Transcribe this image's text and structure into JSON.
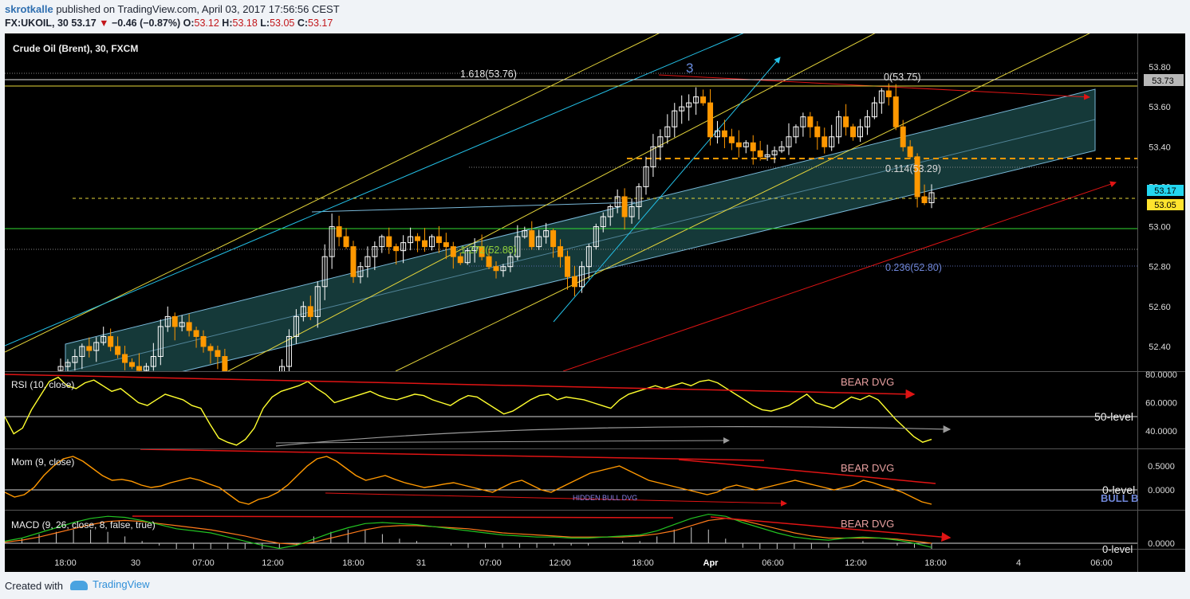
{
  "header": {
    "author": "skrotkalle",
    "published_text": "published on TradingView.com, April 03, 2017 17:56:56 CEST",
    "symbol": "FX:UKOIL, 30",
    "last": "53.17",
    "change": "−0.46 (−0.87%)",
    "open_label": "O:",
    "open": "53.12",
    "high_label": "H:",
    "high": "53.18",
    "low_label": "L:",
    "low": "53.05",
    "close_label": "C:",
    "close": "53.17"
  },
  "footer": {
    "created_with": "Created with",
    "brand": "TradingView"
  },
  "colors": {
    "background": "#000000",
    "up": "#ffffff",
    "down": "#ff9800",
    "channel_fill": "#2f7f7f",
    "fib_yellow": "#e6d63a",
    "cyan": "#23c1e8",
    "red": "#e01414",
    "rsi": "#ffff2e",
    "mom": "#ff9800",
    "macd": "#22c322",
    "signal": "#ff7a1a"
  },
  "chart_data": [
    {
      "type": "candlestick",
      "title": "Crude Oil (Brent), 30, FXCM",
      "ylim": [
        52.25,
        53.92
      ],
      "y_ticks": [
        "53.80",
        "53.60",
        "53.40",
        "53.20",
        "53.00",
        "52.80",
        "52.60",
        "52.40"
      ],
      "x_ticks": [
        "18:00",
        "30",
        "07:00",
        "12:00",
        "18:00",
        "31",
        "07:00",
        "12:00",
        "18:00",
        "Apr",
        "06:00",
        "12:00",
        "18:00",
        "4",
        "06:00"
      ],
      "price_tags": [
        "53.73",
        "53.17",
        "53.05"
      ],
      "wave_label": "3",
      "fib_levels": [
        {
          "label": "1.618(53.76)",
          "value": 53.76
        },
        {
          "label": "0(53.75)",
          "value": 53.75
        },
        {
          "label": "0.114(53.29)",
          "value": 53.29
        },
        {
          "label": "1.272(52.88)",
          "value": 52.88
        },
        {
          "label": "0.236(52.80)",
          "value": 52.8
        }
      ],
      "close_path": [
        52.3,
        52.32,
        52.35,
        52.4,
        52.38,
        52.42,
        52.45,
        52.4,
        52.36,
        52.32,
        52.3,
        52.28,
        52.3,
        52.35,
        52.5,
        52.55,
        52.5,
        52.52,
        52.48,
        52.45,
        52.4,
        52.38,
        52.35,
        52.2,
        52.15,
        52.12,
        52.1,
        52.08,
        52.1,
        52.12,
        52.15,
        52.3,
        52.45,
        52.55,
        52.6,
        52.55,
        52.7,
        52.85,
        53.0,
        52.95,
        52.9,
        52.75,
        52.8,
        52.85,
        52.9,
        52.95,
        52.9,
        52.88,
        52.92,
        52.95,
        52.93,
        52.9,
        52.95,
        52.92,
        52.9,
        52.85,
        52.82,
        52.88,
        52.9,
        52.85,
        52.8,
        52.78,
        52.8,
        52.85,
        52.95,
        52.98,
        52.9,
        52.95,
        52.98,
        52.9,
        52.85,
        52.75,
        52.7,
        52.8,
        52.9,
        53.0,
        53.05,
        53.1,
        53.15,
        53.05,
        53.1,
        53.2,
        53.3,
        53.4,
        53.45,
        53.5,
        53.58,
        53.6,
        53.62,
        53.65,
        53.62,
        53.45,
        53.48,
        53.45,
        53.42,
        53.4,
        53.42,
        53.38,
        53.35,
        53.36,
        53.38,
        53.4,
        53.45,
        53.5,
        53.55,
        53.5,
        53.45,
        53.4,
        53.45,
        53.55,
        53.5,
        53.45,
        53.5,
        53.55,
        53.62,
        53.68,
        53.65,
        53.5,
        53.4,
        53.35,
        53.15,
        53.12,
        53.17
      ]
    },
    {
      "type": "line",
      "title": "RSI (10, close)",
      "ylim": [
        25,
        85
      ],
      "y_ticks": [
        "80.0000",
        "60.0000",
        "40.0000"
      ],
      "level": 50,
      "level_label": "50-level",
      "annotation": "BEAR DVG",
      "values": [
        50,
        38,
        42,
        55,
        65,
        75,
        78,
        72,
        70,
        74,
        76,
        72,
        68,
        70,
        65,
        60,
        58,
        62,
        66,
        64,
        62,
        58,
        56,
        45,
        35,
        32,
        30,
        34,
        42,
        56,
        64,
        68,
        70,
        72,
        75,
        70,
        66,
        60,
        62,
        64,
        66,
        68,
        65,
        63,
        62,
        64,
        66,
        65,
        62,
        60,
        58,
        62,
        65,
        64,
        60,
        56,
        52,
        54,
        58,
        62,
        65,
        66,
        62,
        64,
        63,
        62,
        60,
        58,
        56,
        62,
        66,
        68,
        70,
        72,
        70,
        72,
        74,
        72,
        75,
        76,
        74,
        70,
        66,
        62,
        58,
        55,
        54,
        56,
        58,
        62,
        66,
        60,
        58,
        56,
        60,
        64,
        62,
        65,
        62,
        55,
        48,
        42,
        36,
        32,
        34
      ]
    },
    {
      "type": "line",
      "title": "Mom (9, close)",
      "ylim": [
        -0.32,
        0.78
      ],
      "y_ticks": [
        "0.5000",
        "0.0000"
      ],
      "level": 0,
      "level_label": "0-level",
      "annotations": [
        "BEAR DVG",
        "HIDDEN BULL DVG"
      ],
      "overlay_text": "BULL B",
      "values": [
        -0.05,
        -0.15,
        -0.1,
        0.05,
        0.3,
        0.5,
        0.65,
        0.7,
        0.6,
        0.45,
        0.3,
        0.2,
        0.22,
        0.18,
        0.1,
        0.05,
        0.08,
        0.15,
        0.2,
        0.25,
        0.2,
        0.12,
        0.05,
        -0.1,
        -0.25,
        -0.3,
        -0.2,
        -0.15,
        -0.05,
        0.1,
        0.3,
        0.5,
        0.65,
        0.7,
        0.6,
        0.45,
        0.3,
        0.2,
        0.25,
        0.3,
        0.22,
        0.15,
        0.1,
        0.05,
        0.08,
        0.12,
        0.15,
        0.1,
        0.05,
        0.0,
        -0.05,
        0.05,
        0.15,
        0.2,
        0.1,
        0.0,
        -0.05,
        0.05,
        0.15,
        0.25,
        0.35,
        0.4,
        0.45,
        0.5,
        0.4,
        0.3,
        0.2,
        0.15,
        0.1,
        0.05,
        0.0,
        -0.05,
        -0.1,
        -0.05,
        0.05,
        0.1,
        0.05,
        0.0,
        0.05,
        0.1,
        0.15,
        0.2,
        0.15,
        0.1,
        0.05,
        0.0,
        0.05,
        0.1,
        0.2,
        0.15,
        0.08,
        0.02,
        -0.05,
        -0.15,
        -0.25,
        -0.3
      ]
    },
    {
      "type": "line",
      "title": "MACD (9, 26, close, 8, false, true)",
      "ylim": [
        -0.12,
        0.32
      ],
      "y_ticks": [
        "0.0000"
      ],
      "level": 0,
      "level_label": "0-level",
      "annotation": "BEAR DVG",
      "macd": [
        0.02,
        0.05,
        0.1,
        0.15,
        0.2,
        0.24,
        0.26,
        0.25,
        0.22,
        0.18,
        0.14,
        0.12,
        0.1,
        0.06,
        0.02,
        -0.02,
        -0.05,
        -0.02,
        0.04,
        0.1,
        0.15,
        0.19,
        0.2,
        0.19,
        0.18,
        0.16,
        0.14,
        0.12,
        0.1,
        0.08,
        0.07,
        0.06,
        0.06,
        0.05,
        0.05,
        0.06,
        0.07,
        0.08,
        0.12,
        0.18,
        0.24,
        0.28,
        0.26,
        0.2,
        0.15,
        0.1,
        0.06,
        0.04,
        0.03,
        0.05,
        0.06,
        0.05,
        0.03,
        0.0,
        -0.04
      ],
      "signal": [
        0.01,
        0.03,
        0.06,
        0.1,
        0.14,
        0.18,
        0.21,
        0.22,
        0.21,
        0.19,
        0.17,
        0.15,
        0.13,
        0.1,
        0.07,
        0.03,
        0.0,
        -0.01,
        0.01,
        0.05,
        0.09,
        0.13,
        0.16,
        0.17,
        0.17,
        0.16,
        0.15,
        0.14,
        0.12,
        0.1,
        0.09,
        0.08,
        0.07,
        0.06,
        0.06,
        0.06,
        0.06,
        0.07,
        0.09,
        0.12,
        0.17,
        0.22,
        0.24,
        0.22,
        0.18,
        0.14,
        0.1,
        0.07,
        0.05,
        0.05,
        0.05,
        0.05,
        0.04,
        0.02,
        0.0
      ]
    }
  ]
}
